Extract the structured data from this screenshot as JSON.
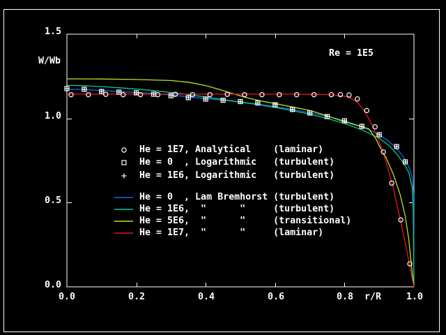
{
  "screen": {
    "background": "#000000",
    "frame_color": "#ffffff",
    "annotation": "Re = 1E5"
  },
  "chart_data": {
    "type": "line",
    "title": "",
    "annotation": "Re = 1E5",
    "xlabel": "r/R",
    "ylabel": "W/Wb",
    "xlim": [
      0.0,
      1.0
    ],
    "ylim": [
      0.0,
      1.5
    ],
    "grid": false,
    "x_ticks": [
      "0.0",
      "0.2",
      "0.4",
      "0.6",
      "0.8",
      "1.0"
    ],
    "x_tick_values": [
      0.0,
      0.2,
      0.4,
      0.6,
      0.8,
      1.0
    ],
    "y_ticks": [
      "0.0",
      "0.5",
      "1.0",
      "1.5"
    ],
    "y_tick_values": [
      0.0,
      0.5,
      1.0,
      1.5
    ],
    "axis_color": "#ffffff",
    "marker_color": "#ffffff",
    "marker_series": [
      {
        "name": "He = 1E7, Analytical (laminar)",
        "symbol": "circle",
        "points": [
          [
            0.012,
            1.141
          ],
          [
            0.062,
            1.141
          ],
          [
            0.112,
            1.143
          ],
          [
            0.162,
            1.141
          ],
          [
            0.212,
            1.141
          ],
          [
            0.262,
            1.141
          ],
          [
            0.312,
            1.143
          ],
          [
            0.362,
            1.141
          ],
          [
            0.412,
            1.141
          ],
          [
            0.462,
            1.143
          ],
          [
            0.512,
            1.141
          ],
          [
            0.562,
            1.141
          ],
          [
            0.612,
            1.141
          ],
          [
            0.662,
            1.141
          ],
          [
            0.712,
            1.141
          ],
          [
            0.762,
            1.141
          ],
          [
            0.788,
            1.141
          ],
          [
            0.813,
            1.139
          ],
          [
            0.837,
            1.116
          ],
          [
            0.864,
            1.047
          ],
          [
            0.888,
            0.95
          ],
          [
            0.912,
            0.801
          ],
          [
            0.936,
            0.616
          ],
          [
            0.962,
            0.398
          ],
          [
            0.988,
            0.137
          ]
        ]
      },
      {
        "name": "He = 0, Logarithmic (turbulent)",
        "symbol": "square",
        "points": [
          [
            0.0,
            1.177
          ],
          [
            0.05,
            1.173
          ],
          [
            0.1,
            1.16
          ],
          [
            0.15,
            1.156
          ],
          [
            0.2,
            1.152
          ],
          [
            0.25,
            1.144
          ],
          [
            0.3,
            1.135
          ],
          [
            0.35,
            1.123
          ],
          [
            0.4,
            1.115
          ],
          [
            0.45,
            1.108
          ],
          [
            0.5,
            1.1
          ],
          [
            0.55,
            1.092
          ],
          [
            0.6,
            1.081
          ],
          [
            0.65,
            1.053
          ],
          [
            0.7,
            1.032
          ],
          [
            0.75,
            1.011
          ],
          [
            0.8,
            0.986
          ],
          [
            0.85,
            0.953
          ],
          [
            0.9,
            0.903
          ],
          [
            0.95,
            0.833
          ],
          [
            0.975,
            0.742
          ]
        ]
      },
      {
        "name": "He = 1E6, Logarithmic (turbulent)",
        "symbol": "plus",
        "points": [
          [
            0.0,
            1.177
          ],
          [
            0.05,
            1.173
          ],
          [
            0.1,
            1.16
          ],
          [
            0.15,
            1.156
          ],
          [
            0.2,
            1.152
          ],
          [
            0.25,
            1.144
          ],
          [
            0.3,
            1.135
          ],
          [
            0.35,
            1.123
          ],
          [
            0.4,
            1.115
          ],
          [
            0.45,
            1.108
          ],
          [
            0.5,
            1.1
          ],
          [
            0.55,
            1.092
          ],
          [
            0.6,
            1.081
          ],
          [
            0.65,
            1.053
          ],
          [
            0.7,
            1.032
          ],
          [
            0.75,
            1.011
          ],
          [
            0.8,
            0.986
          ],
          [
            0.85,
            0.953
          ],
          [
            0.9,
            0.903
          ],
          [
            0.95,
            0.833
          ],
          [
            0.975,
            0.742
          ]
        ]
      }
    ],
    "line_series": [
      {
        "name": "He = 0, Lam Bremhorst (turbulent)",
        "color": "#1f62e8",
        "points": [
          [
            0.0,
            1.173
          ],
          [
            0.05,
            1.171
          ],
          [
            0.1,
            1.166
          ],
          [
            0.15,
            1.16
          ],
          [
            0.2,
            1.154
          ],
          [
            0.25,
            1.147
          ],
          [
            0.3,
            1.139
          ],
          [
            0.35,
            1.128
          ],
          [
            0.4,
            1.118
          ],
          [
            0.45,
            1.108
          ],
          [
            0.5,
            1.097
          ],
          [
            0.55,
            1.085
          ],
          [
            0.6,
            1.07
          ],
          [
            0.65,
            1.053
          ],
          [
            0.7,
            1.034
          ],
          [
            0.75,
            1.012
          ],
          [
            0.8,
            0.986
          ],
          [
            0.85,
            0.952
          ],
          [
            0.9,
            0.905
          ],
          [
            0.93,
            0.86
          ],
          [
            0.95,
            0.822
          ],
          [
            0.97,
            0.77
          ],
          [
            0.985,
            0.715
          ],
          [
            0.995,
            0.65
          ],
          [
            0.999,
            0.55
          ],
          [
            1.0,
            0.0
          ]
        ]
      },
      {
        "name": "He = 1E6, Lam Bremhorst (turbulent)",
        "color": "#00cc8c",
        "points": [
          [
            0.0,
            1.197
          ],
          [
            0.05,
            1.194
          ],
          [
            0.1,
            1.189
          ],
          [
            0.15,
            1.182
          ],
          [
            0.2,
            1.174
          ],
          [
            0.25,
            1.165
          ],
          [
            0.3,
            1.154
          ],
          [
            0.35,
            1.141
          ],
          [
            0.4,
            1.127
          ],
          [
            0.45,
            1.112
          ],
          [
            0.5,
            1.097
          ],
          [
            0.55,
            1.082
          ],
          [
            0.6,
            1.065
          ],
          [
            0.65,
            1.046
          ],
          [
            0.7,
            1.025
          ],
          [
            0.75,
            1.0
          ],
          [
            0.8,
            0.97
          ],
          [
            0.85,
            0.932
          ],
          [
            0.9,
            0.882
          ],
          [
            0.93,
            0.835
          ],
          [
            0.95,
            0.79
          ],
          [
            0.97,
            0.735
          ],
          [
            0.985,
            0.68
          ],
          [
            0.995,
            0.59
          ],
          [
            0.998,
            0.45
          ],
          [
            1.0,
            0.0
          ]
        ]
      },
      {
        "name": "He = 5E6, Lam Bremhorst (transitional)",
        "color": "#bce21e",
        "points": [
          [
            0.0,
            1.235
          ],
          [
            0.1,
            1.234
          ],
          [
            0.2,
            1.231
          ],
          [
            0.3,
            1.225
          ],
          [
            0.35,
            1.215
          ],
          [
            0.4,
            1.195
          ],
          [
            0.44,
            1.172
          ],
          [
            0.48,
            1.146
          ],
          [
            0.52,
            1.122
          ],
          [
            0.56,
            1.103
          ],
          [
            0.6,
            1.088
          ],
          [
            0.65,
            1.068
          ],
          [
            0.7,
            1.047
          ],
          [
            0.75,
            1.015
          ],
          [
            0.8,
            0.98
          ],
          [
            0.85,
            0.95
          ],
          [
            0.87,
            0.938
          ],
          [
            0.89,
            0.88
          ],
          [
            0.9,
            0.838
          ],
          [
            0.92,
            0.765
          ],
          [
            0.94,
            0.672
          ],
          [
            0.96,
            0.55
          ],
          [
            0.975,
            0.42
          ],
          [
            0.985,
            0.285
          ],
          [
            0.995,
            0.085
          ],
          [
            1.0,
            0.0
          ]
        ]
      },
      {
        "name": "He = 1E7, Lam Bremhorst (laminar)",
        "color": "#e8141c",
        "points": [
          [
            0.0,
            1.144
          ],
          [
            0.6,
            1.144
          ],
          [
            0.7,
            1.143
          ],
          [
            0.76,
            1.141
          ],
          [
            0.8,
            1.132
          ],
          [
            0.82,
            1.118
          ],
          [
            0.84,
            1.09
          ],
          [
            0.86,
            1.035
          ],
          [
            0.88,
            0.96
          ],
          [
            0.9,
            0.862
          ],
          [
            0.92,
            0.74
          ],
          [
            0.94,
            0.59
          ],
          [
            0.96,
            0.405
          ],
          [
            0.98,
            0.21
          ],
          [
            0.995,
            0.048
          ],
          [
            1.0,
            0.0
          ]
        ]
      }
    ]
  },
  "legend": {
    "marker_rows": [
      {
        "symbol": "circle",
        "text": "He = 1E7, Analytical    (laminar)"
      },
      {
        "symbol": "square",
        "text": "He = 0  , Logarithmic   (turbulent)"
      },
      {
        "symbol": "plus",
        "text": "He = 1E6, Logarithmic   (turbulent)"
      }
    ],
    "line_rows": [
      {
        "color": "#1f62e8",
        "text": "He = 0  , Lam Bremhorst (turbulent)"
      },
      {
        "color": "#00cc8c",
        "text": "He = 1E6,  \"      \"     (turbulent)"
      },
      {
        "color": "#bce21e",
        "text": "He = 5E6,  \"      \"     (transitional)"
      },
      {
        "color": "#e8141c",
        "text": "He = 1E7,  \"      \"     (laminar)"
      }
    ]
  }
}
